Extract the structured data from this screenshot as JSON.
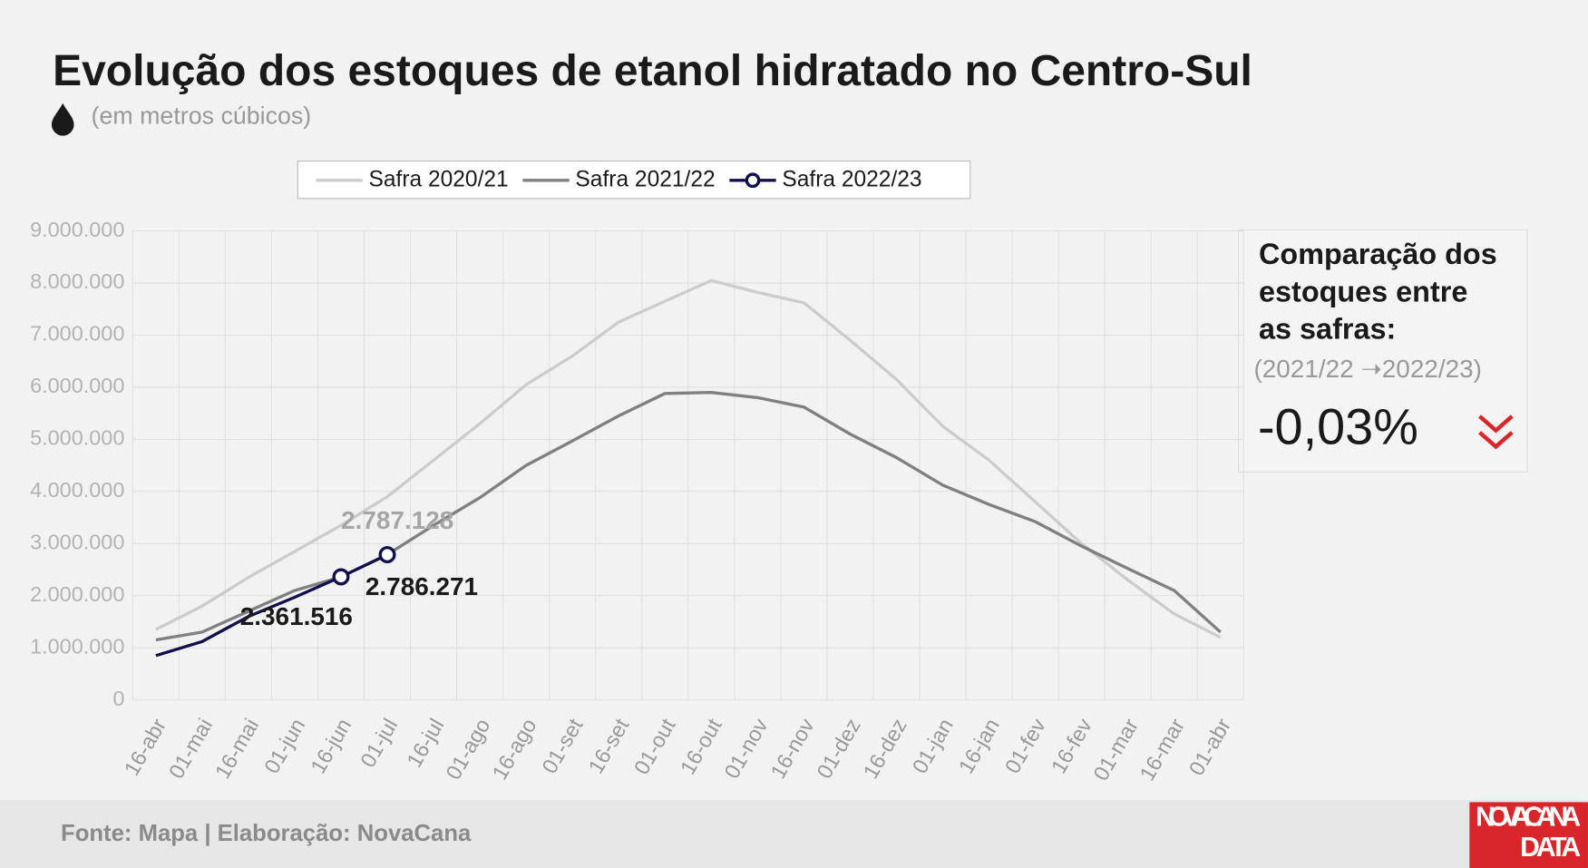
{
  "chart_data": {
    "type": "line",
    "title": "Evolução dos estoques de etanol hidratado no Centro-Sul",
    "subtitle": "(em metros cúbicos)",
    "categories": [
      "16-abr",
      "01-mai",
      "16-mai",
      "01-jun",
      "16-jun",
      "01-jul",
      "16-jul",
      "01-ago",
      "16-ago",
      "01-set",
      "16-set",
      "01-out",
      "16-out",
      "01-nov",
      "16-nov",
      "01-dez",
      "16-dez",
      "01-jan",
      "16-jan",
      "01-fev",
      "16-fev",
      "01-mar",
      "16-mar",
      "01-abr"
    ],
    "series": [
      {
        "name": "Safra 2020/21",
        "color": "#cccccc",
        "values": [
          1350000,
          1800000,
          2350000,
          2850000,
          3350000,
          3900000,
          4600000,
          5300000,
          6050000,
          6600000,
          7250000,
          7650000,
          8050000,
          7820000,
          7620000,
          6900000,
          6150000,
          5250000,
          4600000,
          3800000,
          3000000,
          2300000,
          1650000,
          1200000
        ]
      },
      {
        "name": "Safra 2021/22",
        "color": "#808080",
        "values": [
          1150000,
          1300000,
          1700000,
          2100000,
          2360000,
          2787128,
          3350000,
          3880000,
          4500000,
          4970000,
          5450000,
          5880000,
          5900000,
          5800000,
          5620000,
          5100000,
          4650000,
          4120000,
          3750000,
          3420000,
          2950000,
          2520000,
          2100000,
          1300000
        ],
        "value_labels": [
          null,
          null,
          null,
          null,
          null,
          "2.787.128",
          null,
          null,
          null,
          null,
          null,
          null,
          null,
          null,
          null,
          null,
          null,
          null,
          null,
          null,
          null,
          null,
          null,
          null
        ]
      },
      {
        "name": "Safra 2022/23",
        "color": "#12104a",
        "marker": "circle",
        "values": [
          850000,
          1120000,
          1600000,
          1970000,
          2361516,
          2786271,
          null,
          null,
          null,
          null,
          null,
          null,
          null,
          null,
          null,
          null,
          null,
          null,
          null,
          null,
          null,
          null,
          null,
          null
        ],
        "value_labels": [
          null,
          null,
          null,
          null,
          "2.361.516",
          "2.786.271",
          null,
          null,
          null,
          null,
          null,
          null,
          null,
          null,
          null,
          null,
          null,
          null,
          null,
          null,
          null,
          null,
          null,
          null
        ]
      }
    ],
    "ylim": [
      0,
      9000000
    ],
    "yticks": [
      0,
      {
        "value": 1000000,
        "label": "1.000.000"
      },
      {
        "value": 2000000,
        "label": "2.000.000"
      },
      {
        "value": 3000000,
        "label": "3.000.000"
      },
      {
        "value": 4000000,
        "label": "4.000.000"
      },
      {
        "value": 5000000,
        "label": "5.000.000"
      },
      {
        "value": 6000000,
        "label": "6.000.000"
      },
      {
        "value": 7000000,
        "label": "7.000.000"
      },
      {
        "value": 8000000,
        "label": "8.000.000"
      },
      {
        "value": 9000000,
        "label": "9.000.000"
      }
    ],
    "grid": true,
    "legend": "top",
    "comparison": {
      "title_lines": [
        "Comparação dos",
        "estoques entre",
        "as safras:"
      ],
      "period": "(2021/22 ➝2022/23)",
      "value": "-0,03%"
    },
    "source": "Fonte: Mapa | Elaboração: NovaCana",
    "logo_lines": [
      "NOVACANA",
      "DATA"
    ]
  }
}
